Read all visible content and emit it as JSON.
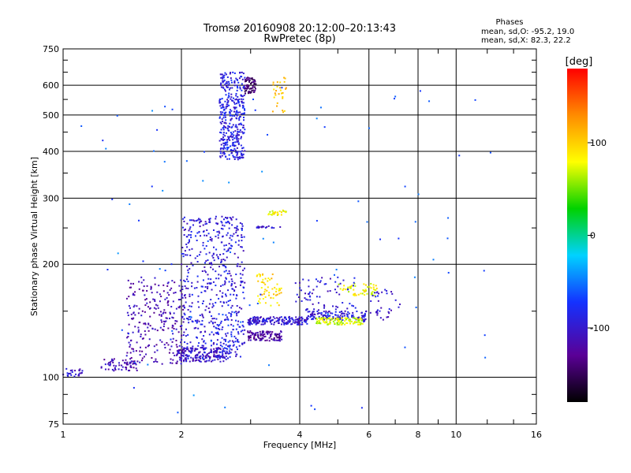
{
  "chart_data": {
    "type": "scatter",
    "title": "Tromsø 20160908 20:12:00–20:13:43",
    "subtitle": "RwPretec (8p)",
    "xlabel": "Frequency [MHz]",
    "ylabel": "Stationary phase Virtual Height [km]",
    "x_scale": "log",
    "y_scale": "log",
    "xlim": [
      1,
      16
    ],
    "ylim": [
      75,
      750
    ],
    "xticks": [
      1,
      2,
      4,
      6,
      8,
      10,
      16
    ],
    "yticks": [
      75,
      100,
      200,
      300,
      400,
      500,
      600,
      750
    ],
    "grid": true,
    "colorbar": {
      "label": "[deg]",
      "range": [
        -180,
        180
      ],
      "ticks": [
        100,
        0,
        -100
      ]
    },
    "phase_stats": {
      "title": "Phases",
      "o_line": "mean, sd,O: -95.2, 19.0",
      "x_line": "mean, sd,X:  82.3, 22.2"
    },
    "clusters": [
      {
        "x": [
          1.0,
          1.12
        ],
        "y": [
          100,
          106
        ],
        "phase": -100,
        "n": 25
      },
      {
        "x": [
          1.25,
          1.55
        ],
        "y": [
          104,
          112
        ],
        "phase": -115,
        "n": 60
      },
      {
        "x": [
          1.45,
          2.05
        ],
        "y": [
          108,
          185
        ],
        "phase": -115,
        "n": 260
      },
      {
        "x": [
          1.95,
          2.6
        ],
        "y": [
          110,
          120
        ],
        "phase": -105,
        "n": 180
      },
      {
        "x": [
          2.0,
          2.9
        ],
        "y": [
          112,
          270
        ],
        "phase": -95,
        "n": 520
      },
      {
        "x": [
          2.5,
          2.9
        ],
        "y": [
          380,
          650
        ],
        "phase": -90,
        "n": 380
      },
      {
        "x": [
          2.9,
          3.1
        ],
        "y": [
          570,
          630
        ],
        "phase": -140,
        "n": 70
      },
      {
        "x": [
          2.95,
          3.6
        ],
        "y": [
          125,
          133
        ],
        "phase": -125,
        "n": 110
      },
      {
        "x": [
          2.95,
          4.2
        ],
        "y": [
          138,
          145
        ],
        "phase": -100,
        "n": 180
      },
      {
        "x": [
          4.2,
          5.9
        ],
        "y": [
          142,
          150
        ],
        "phase": -95,
        "n": 120
      },
      {
        "x": [
          4.4,
          5.8
        ],
        "y": [
          138,
          144
        ],
        "phase": 70,
        "n": 110
      },
      {
        "x": [
          5.0,
          6.3
        ],
        "y": [
          165,
          178
        ],
        "phase": 80,
        "n": 55
      },
      {
        "x": [
          3.1,
          3.6
        ],
        "y": [
          155,
          190
        ],
        "phase": 95,
        "n": 55
      },
      {
        "x": [
          3.4,
          3.7
        ],
        "y": [
          500,
          630
        ],
        "phase": 105,
        "n": 28
      },
      {
        "x": [
          3.3,
          3.7
        ],
        "y": [
          270,
          280
        ],
        "phase": 80,
        "n": 25
      },
      {
        "x": [
          3.1,
          3.6
        ],
        "y": [
          250,
          253
        ],
        "phase": -100,
        "n": 22
      },
      {
        "x": [
          3.9,
          5.6
        ],
        "y": [
          150,
          185
        ],
        "phase": -95,
        "n": 70
      },
      {
        "x": [
          5.8,
          7.2
        ],
        "y": [
          140,
          175
        ],
        "phase": -100,
        "n": 40
      },
      {
        "x": [
          2.45,
          2.8
        ],
        "y": [
          118,
          150
        ],
        "phase": -80,
        "n": 45
      },
      {
        "x": [
          1.1,
          12.5
        ],
        "y": [
          80,
          620
        ],
        "phase": -60,
        "n": 90
      }
    ]
  }
}
